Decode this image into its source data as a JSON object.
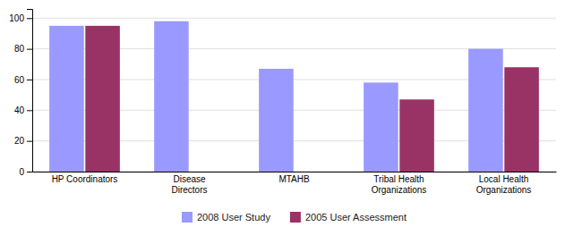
{
  "chart_data": {
    "type": "bar",
    "categories": [
      "HP Coordinators",
      "Disease\nDirectors",
      "MTAHB",
      "Tribal Health\nOrganizations",
      "Local Health\nOrganizations"
    ],
    "series": [
      {
        "name": "2008 User Study",
        "color": "#9999FF",
        "values": [
          95,
          98,
          67,
          58,
          80
        ]
      },
      {
        "name": "2005 User Assessment",
        "color": "#993366",
        "values": [
          95,
          null,
          null,
          47,
          68
        ]
      }
    ],
    "ylim": [
      0,
      106
    ],
    "yticks": [
      0,
      20,
      40,
      60,
      80,
      100
    ],
    "grid": true,
    "legend": "bottom"
  }
}
